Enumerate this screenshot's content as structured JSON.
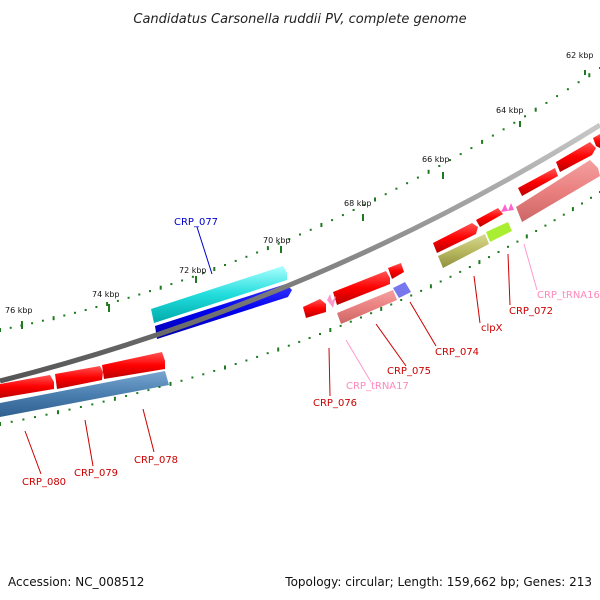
{
  "title": "Candidatus Carsonella ruddii PV, complete genome",
  "footer": {
    "accession": "Accession: NC_008512",
    "summary": "Topology: circular; Length: 159,662 bp; Genes: 213"
  },
  "colors": {
    "backbone": "#8a8a8a",
    "tick": "#1f7a1f",
    "cds": "#ff0000",
    "cds_label": "#cc0000",
    "trna": "#ff66cc",
    "trna_label": "#ff88bb",
    "other_label": "#0000cc"
  },
  "scale_labels": [
    "62 kbp",
    "64 kbp",
    "66 kbp",
    "68 kbp",
    "70 kbp",
    "72 kbp",
    "74 kbp",
    "76 kbp"
  ],
  "gene_labels": [
    {
      "id": "CRP_077",
      "color": "#0000cc"
    },
    {
      "id": "CRP_tRNA16",
      "color": "#ff88bb"
    },
    {
      "id": "CRP_072",
      "color": "#cc0000"
    },
    {
      "id": "clpX",
      "color": "#cc0000"
    },
    {
      "id": "CRP_074",
      "color": "#cc0000"
    },
    {
      "id": "CRP_075",
      "color": "#cc0000"
    },
    {
      "id": "CRP_tRNA17",
      "color": "#ff88bb"
    },
    {
      "id": "CRP_076",
      "color": "#cc0000"
    },
    {
      "id": "CRP_078",
      "color": "#cc0000"
    },
    {
      "id": "CRP_079",
      "color": "#cc0000"
    },
    {
      "id": "CRP_080",
      "color": "#cc0000"
    }
  ]
}
